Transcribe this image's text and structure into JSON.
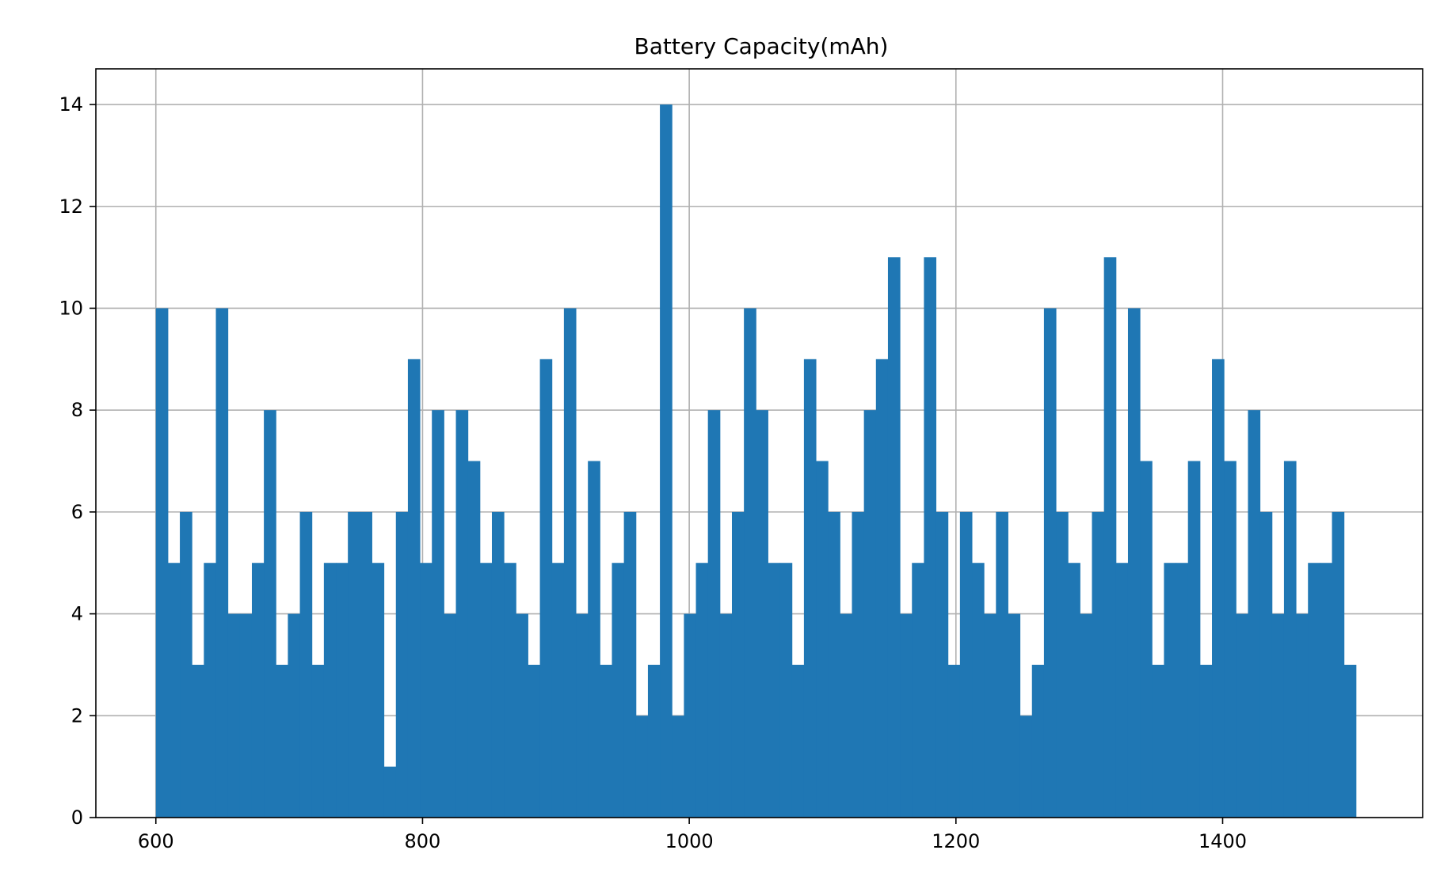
{
  "chart_data": {
    "type": "bar",
    "title": "Battery Capacity(mAh)",
    "xlabel": "",
    "ylabel": "",
    "xlim": [
      555,
      1550
    ],
    "ylim": [
      0,
      14.7
    ],
    "grid": true,
    "bar_color": "#1f77b4",
    "grid_color": "#b0b0b0",
    "bin_start": 600,
    "bin_end": 1500,
    "bin_count": 100,
    "bin_width": 9,
    "counts": [
      10,
      5,
      6,
      3,
      5,
      10,
      4,
      4,
      5,
      8,
      3,
      4,
      6,
      3,
      5,
      5,
      6,
      6,
      5,
      1,
      6,
      9,
      5,
      8,
      4,
      8,
      7,
      5,
      6,
      5,
      4,
      3,
      9,
      5,
      10,
      4,
      7,
      3,
      5,
      6,
      2,
      3,
      14,
      2,
      4,
      5,
      8,
      4,
      6,
      10,
      8,
      5,
      5,
      3,
      9,
      7,
      6,
      4,
      6,
      8,
      9,
      11,
      4,
      5,
      11,
      6,
      3,
      6,
      5,
      4,
      6,
      4,
      2,
      3,
      10,
      6,
      5,
      4,
      6,
      11,
      5,
      10,
      7,
      3,
      5,
      5,
      7,
      3,
      9,
      7,
      4,
      8,
      6,
      4,
      7,
      4,
      5,
      5,
      6,
      3
    ],
    "x_ticks": [
      600,
      800,
      1000,
      1200,
      1400
    ],
    "x_tick_labels": [
      "600",
      "800",
      "1000",
      "1200",
      "1400"
    ],
    "y_ticks": [
      0,
      2,
      4,
      6,
      8,
      10,
      12,
      14
    ],
    "y_tick_labels": [
      "0",
      "2",
      "4",
      "6",
      "8",
      "10",
      "12",
      "14"
    ]
  }
}
